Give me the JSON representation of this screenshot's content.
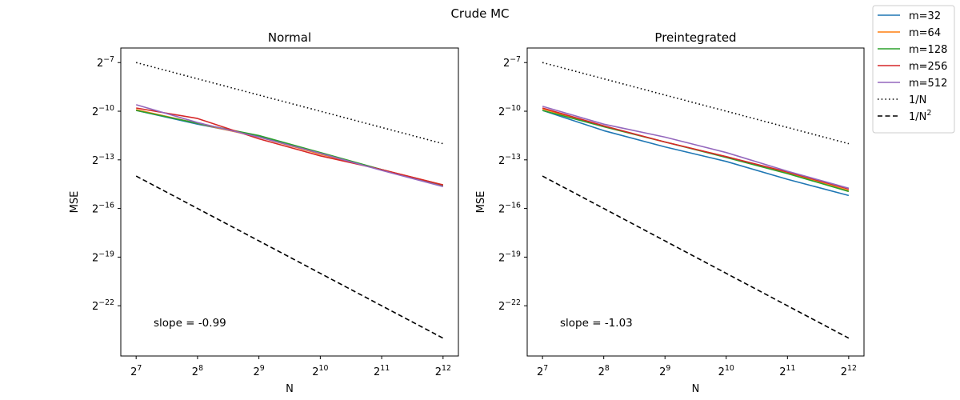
{
  "figure_title": "Crude MC",
  "legend": {
    "placement": "top-right",
    "entries": [
      {
        "label": "m=32",
        "color": "#1f77b4",
        "dash": "solid"
      },
      {
        "label": "m=64",
        "color": "#ff7f0e",
        "dash": "solid"
      },
      {
        "label": "m=128",
        "color": "#2ca02c",
        "dash": "solid"
      },
      {
        "label": "m=256",
        "color": "#d62728",
        "dash": "solid"
      },
      {
        "label": "m=512",
        "color": "#9467bd",
        "dash": "solid"
      },
      {
        "label": "1/N",
        "color": "#000000",
        "dash": "dotted",
        "sup": ""
      },
      {
        "label": "1/N",
        "color": "#000000",
        "dash": "dashed",
        "sup": "2"
      }
    ]
  },
  "chart_data": [
    {
      "type": "line",
      "title": "Normal",
      "xlabel": "N",
      "ylabel": "MSE",
      "xscale": "log2",
      "yscale": "log2",
      "xlim_log2": [
        6.75,
        12.25
      ],
      "ylim_log2": [
        -25.1,
        -6.1
      ],
      "xticks_log2": [
        7,
        8,
        9,
        10,
        11,
        12
      ],
      "yticks_log2": [
        -7,
        -10,
        -13,
        -16,
        -19,
        -22
      ],
      "x_log2": [
        7,
        8,
        9,
        10,
        11,
        12
      ],
      "annotation": "slope = -0.99",
      "series": [
        {
          "name": "m=32",
          "color": "#1f77b4",
          "y_log2": [
            -9.95,
            -10.8,
            -11.55,
            -12.6,
            -13.6,
            -14.6
          ]
        },
        {
          "name": "m=64",
          "color": "#ff7f0e",
          "y_log2": [
            -9.9,
            -10.75,
            -11.6,
            -12.65,
            -13.6,
            -14.55
          ]
        },
        {
          "name": "m=128",
          "color": "#2ca02c",
          "y_log2": [
            -9.95,
            -10.75,
            -11.5,
            -12.55,
            -13.6,
            -14.6
          ]
        },
        {
          "name": "m=256",
          "color": "#d62728",
          "y_log2": [
            -9.8,
            -10.45,
            -11.7,
            -12.75,
            -13.6,
            -14.55
          ]
        },
        {
          "name": "m=512",
          "color": "#9467bd",
          "y_log2": [
            -9.6,
            -10.7,
            -11.6,
            -12.6,
            -13.65,
            -14.65
          ]
        },
        {
          "name": "1/N",
          "color": "#000000",
          "dash": "dotted",
          "y_log2": [
            -7,
            -8,
            -9,
            -10,
            -11,
            -12
          ]
        },
        {
          "name": "1/N^2",
          "color": "#000000",
          "dash": "dashed",
          "y_log2": [
            -14,
            -16,
            -18,
            -20,
            -22,
            -24
          ]
        }
      ]
    },
    {
      "type": "line",
      "title": "Preintegrated",
      "xlabel": "N",
      "ylabel": "MSE",
      "xscale": "log2",
      "yscale": "log2",
      "xlim_log2": [
        6.75,
        12.25
      ],
      "ylim_log2": [
        -25.1,
        -6.1
      ],
      "xticks_log2": [
        7,
        8,
        9,
        10,
        11,
        12
      ],
      "yticks_log2": [
        -7,
        -10,
        -13,
        -16,
        -19,
        -22
      ],
      "x_log2": [
        7,
        8,
        9,
        10,
        11,
        12
      ],
      "annotation": "slope = -1.03",
      "series": [
        {
          "name": "m=32",
          "color": "#1f77b4",
          "y_log2": [
            -9.95,
            -11.2,
            -12.2,
            -13.1,
            -14.2,
            -15.2
          ]
        },
        {
          "name": "m=64",
          "color": "#ff7f0e",
          "y_log2": [
            -9.85,
            -10.95,
            -11.9,
            -12.8,
            -13.8,
            -14.9
          ]
        },
        {
          "name": "m=128",
          "color": "#2ca02c",
          "y_log2": [
            -9.95,
            -10.95,
            -11.9,
            -12.85,
            -13.85,
            -14.95
          ]
        },
        {
          "name": "m=256",
          "color": "#d62728",
          "y_log2": [
            -9.8,
            -10.9,
            -11.9,
            -12.8,
            -13.75,
            -14.8
          ]
        },
        {
          "name": "m=512",
          "color": "#9467bd",
          "y_log2": [
            -9.7,
            -10.8,
            -11.6,
            -12.55,
            -13.7,
            -14.75
          ]
        },
        {
          "name": "1/N",
          "color": "#000000",
          "dash": "dotted",
          "y_log2": [
            -7,
            -8,
            -9,
            -10,
            -11,
            -12
          ]
        },
        {
          "name": "1/N^2",
          "color": "#000000",
          "dash": "dashed",
          "y_log2": [
            -14,
            -16,
            -18,
            -20,
            -22,
            -24
          ]
        }
      ]
    }
  ]
}
